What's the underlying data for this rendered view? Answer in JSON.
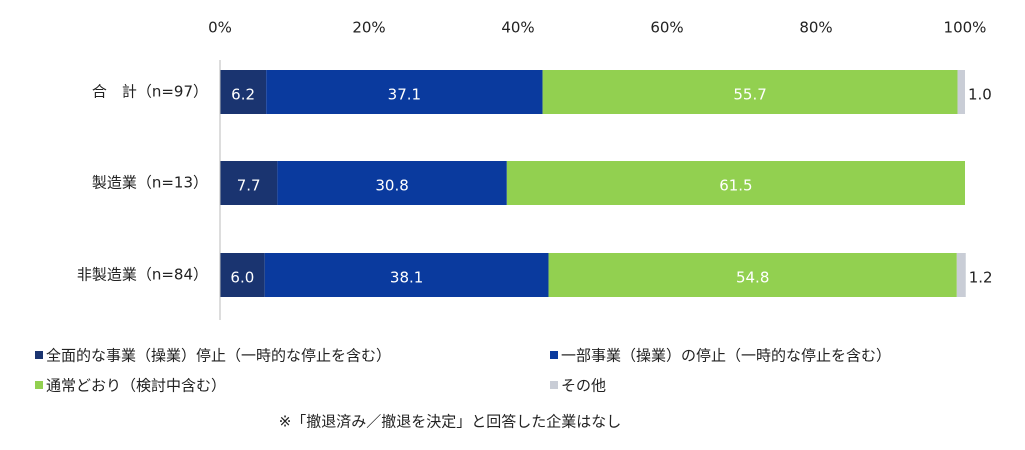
{
  "chart_data": {
    "type": "stacked_barh",
    "categories": [
      "合　計（n=97）",
      "製造業（n=13）",
      "非製造業（n=84）"
    ],
    "series": [
      {
        "name": "全面的な事業（操業）停止（一時的な停止を含む）",
        "color": "#1a3470",
        "values": [
          6.2,
          7.7,
          6.0
        ],
        "value_labels": [
          "6.2",
          "7.7",
          "6.0"
        ]
      },
      {
        "name": "一部事業（操業）の停止（一時的な停止を含む）",
        "color": "#0a3a9e",
        "values": [
          37.1,
          30.8,
          38.1
        ],
        "value_labels": [
          "37.1",
          "30.8",
          "38.1"
        ]
      },
      {
        "name": "通常どおり（検討中含む）",
        "color": "#92d050",
        "values": [
          55.7,
          61.5,
          54.8
        ],
        "value_labels": [
          "55.7",
          "61.5",
          "54.8"
        ]
      },
      {
        "name": "その他",
        "color": "#c9cdd6",
        "values": [
          1.0,
          null,
          1.2
        ],
        "value_labels": [
          "1.0",
          null,
          "1.2"
        ]
      }
    ],
    "xlim": [
      0,
      100
    ],
    "xticks": [
      {
        "value": 0,
        "label": "0%"
      },
      {
        "value": 20,
        "label": "20%"
      },
      {
        "value": 40,
        "label": "40%"
      },
      {
        "value": 60,
        "label": "60%"
      },
      {
        "value": 80,
        "label": "80%"
      },
      {
        "value": 100,
        "label": "100%"
      }
    ],
    "annotation": "※「撤退済み／撤退を決定」と回答した企業はなし"
  }
}
